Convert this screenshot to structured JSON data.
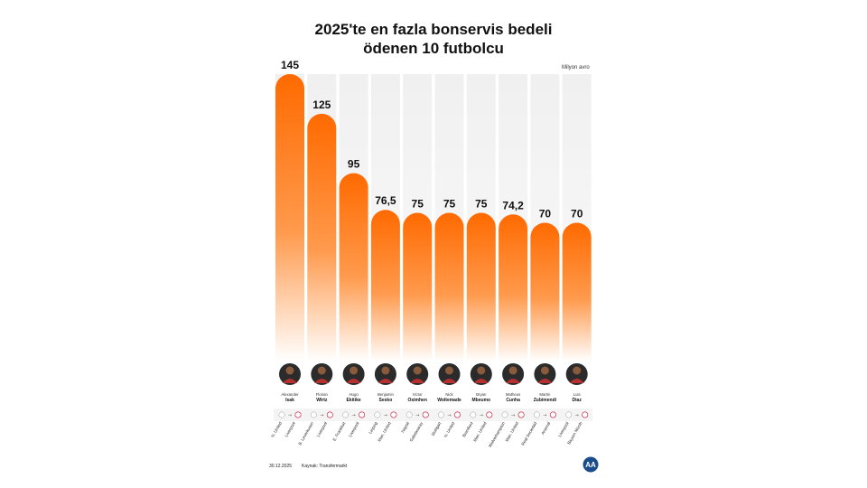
{
  "title_line1": "2025'te en fazla bonservis bedeli",
  "title_line2": "ödenen 10 futbolcu",
  "unit": "Milyon avro",
  "footer": {
    "date": "30.12.2025",
    "source": "Kaynak: Transfermarkt",
    "logo_text": "AA"
  },
  "colors": {
    "bar_top": "#ff6a00",
    "bar_mid": "#ff9a4d",
    "bar_bottom": "#ffffff",
    "column_bg": "#f2f2f2"
  },
  "chart_data": {
    "type": "bar",
    "title": "2025'te en fazla bonservis bedeli ödenen 10 futbolcu",
    "ylabel": "Milyon avro",
    "ylim": [
      0,
      145
    ],
    "categories": [
      "Alexander Isak",
      "Florian Wirtz",
      "Hugo Ekitike",
      "Benjamin Sesko",
      "Victor Osimhen",
      "Nick Woltemade",
      "Bryan Mbeumo",
      "Matheus Cunha",
      "Martin Zubimendi",
      "Luis Diaz"
    ],
    "values": [
      145,
      125,
      95,
      76.5,
      75,
      75,
      75,
      74.2,
      70,
      70
    ],
    "value_labels": [
      "145",
      "125",
      "95",
      "76,5",
      "75",
      "75",
      "75",
      "74,2",
      "70",
      "70"
    ],
    "players": [
      {
        "first": "Alexander",
        "last": "Isak",
        "from": "N. United",
        "to": "Liverpool"
      },
      {
        "first": "Florian",
        "last": "Wirtz",
        "from": "B. Leverkusen",
        "to": "Liverpool"
      },
      {
        "first": "Hugo",
        "last": "Ekitike",
        "from": "E. Frankfurt",
        "to": "Liverpool"
      },
      {
        "first": "Benjamin",
        "last": "Sesko",
        "from": "Leipzig",
        "to": "Man. United"
      },
      {
        "first": "Victor",
        "last": "Osimhen",
        "from": "Napoli",
        "to": "Galatasaray"
      },
      {
        "first": "Nick",
        "last": "Woltemade",
        "from": "Stuttgart",
        "to": "N. United"
      },
      {
        "first": "Bryan",
        "last": "Mbeumo",
        "from": "Brentford",
        "to": "Man. United"
      },
      {
        "first": "Matheus",
        "last": "Cunha",
        "from": "Wolverhampton",
        "to": "Man. United"
      },
      {
        "first": "Martin",
        "last": "Zubimendi",
        "from": "Real Sociedad",
        "to": "Arsenal"
      },
      {
        "first": "Luis",
        "last": "Diaz",
        "from": "Liverpool",
        "to": "Bayern Münih"
      }
    ]
  }
}
